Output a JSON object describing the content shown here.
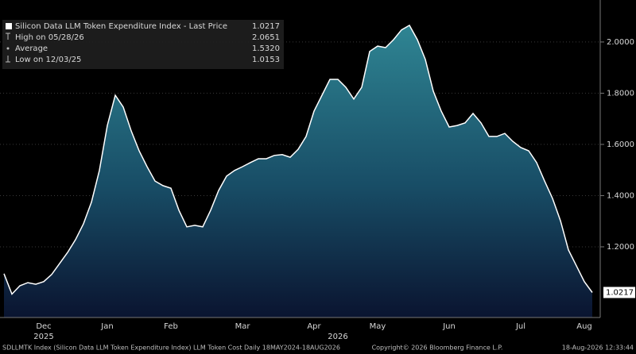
{
  "chart_data": {
    "type": "area",
    "legend": {
      "title": "Silicon Data LLM Token Expenditure Index - Last Price",
      "high_label": "High on 05/28/26",
      "average_label": "Average",
      "low_label": "Low on 12/03/25",
      "average": {
        "value": 1.532,
        "label": "1.5320"
      }
    },
    "categories": [
      null,
      null,
      null,
      null,
      null,
      "Dec",
      null,
      null,
      null,
      null,
      null,
      null,
      null,
      "Jan",
      null,
      null,
      null,
      null,
      null,
      null,
      null,
      "Feb",
      null,
      null,
      null,
      null,
      null,
      null,
      null,
      null,
      "Mar",
      null,
      null,
      null,
      null,
      null,
      null,
      null,
      null,
      "Apr",
      null,
      null,
      null,
      null,
      null,
      null,
      null,
      "May",
      null,
      null,
      null,
      null,
      null,
      null,
      null,
      null,
      "Jun",
      null,
      null,
      null,
      null,
      null,
      null,
      null,
      null,
      "Jul",
      null,
      null,
      null,
      null,
      null,
      null,
      null,
      "Aug",
      null
    ],
    "years": [
      null,
      null,
      null,
      null,
      null,
      "2025",
      null,
      null,
      null,
      null,
      null,
      null,
      null,
      null,
      null,
      null,
      null,
      null,
      null,
      null,
      null,
      null,
      null,
      null,
      null,
      null,
      null,
      null,
      null,
      null,
      null,
      null,
      null,
      null,
      null,
      null,
      null,
      null,
      null,
      null,
      null,
      null,
      "2026",
      null,
      null,
      null,
      null,
      null,
      null,
      null,
      null,
      null,
      null,
      null,
      null,
      null,
      null,
      null,
      null,
      null,
      null,
      null,
      null,
      null,
      null,
      null,
      null,
      null,
      null,
      null,
      null,
      null,
      null,
      null,
      null
    ],
    "series": [
      {
        "name": "SDLLMTK Index",
        "color": "#ffffff",
        "values": [
          1.095,
          1.0153,
          1.048,
          1.06,
          1.054,
          1.064,
          1.092,
          1.135,
          1.178,
          1.228,
          1.29,
          1.374,
          1.498,
          1.674,
          1.792,
          1.746,
          1.653,
          1.575,
          1.513,
          1.457,
          1.439,
          1.429,
          1.343,
          1.278,
          1.284,
          1.278,
          1.343,
          1.42,
          1.476,
          1.498,
          1.513,
          1.529,
          1.544,
          1.544,
          1.557,
          1.56,
          1.55,
          1.581,
          1.631,
          1.73,
          1.792,
          1.854,
          1.854,
          1.823,
          1.777,
          1.823,
          1.963,
          1.984,
          1.978,
          2.009,
          2.047,
          2.0651,
          2.009,
          1.932,
          1.808,
          1.73,
          1.668,
          1.674,
          1.684,
          1.721,
          1.684,
          1.631,
          1.631,
          1.643,
          1.612,
          1.588,
          1.575,
          1.529,
          1.457,
          1.389,
          1.302,
          1.188,
          1.126,
          1.064,
          1.0217
        ]
      }
    ],
    "ylim": [
      0.924,
      2.164
    ],
    "yticks": [
      {
        "value": 1.2,
        "label": "1.2000"
      },
      {
        "value": 1.4,
        "label": "1.4000"
      },
      {
        "value": 1.6,
        "label": "1.6000"
      },
      {
        "value": 1.8,
        "label": "1.8000"
      },
      {
        "value": 2.0,
        "label": "2.0000"
      }
    ],
    "grid": true,
    "footer": {
      "left": "SDLLMTK Index (Silicon Data LLM Token Expenditure Index) LLM Token Cost Daily 18MAY2024-18AUG2026",
      "center": "Copyright© 2026 Bloomberg Finance L.P.",
      "right": "18-Aug-2026 12:33:44"
    }
  }
}
